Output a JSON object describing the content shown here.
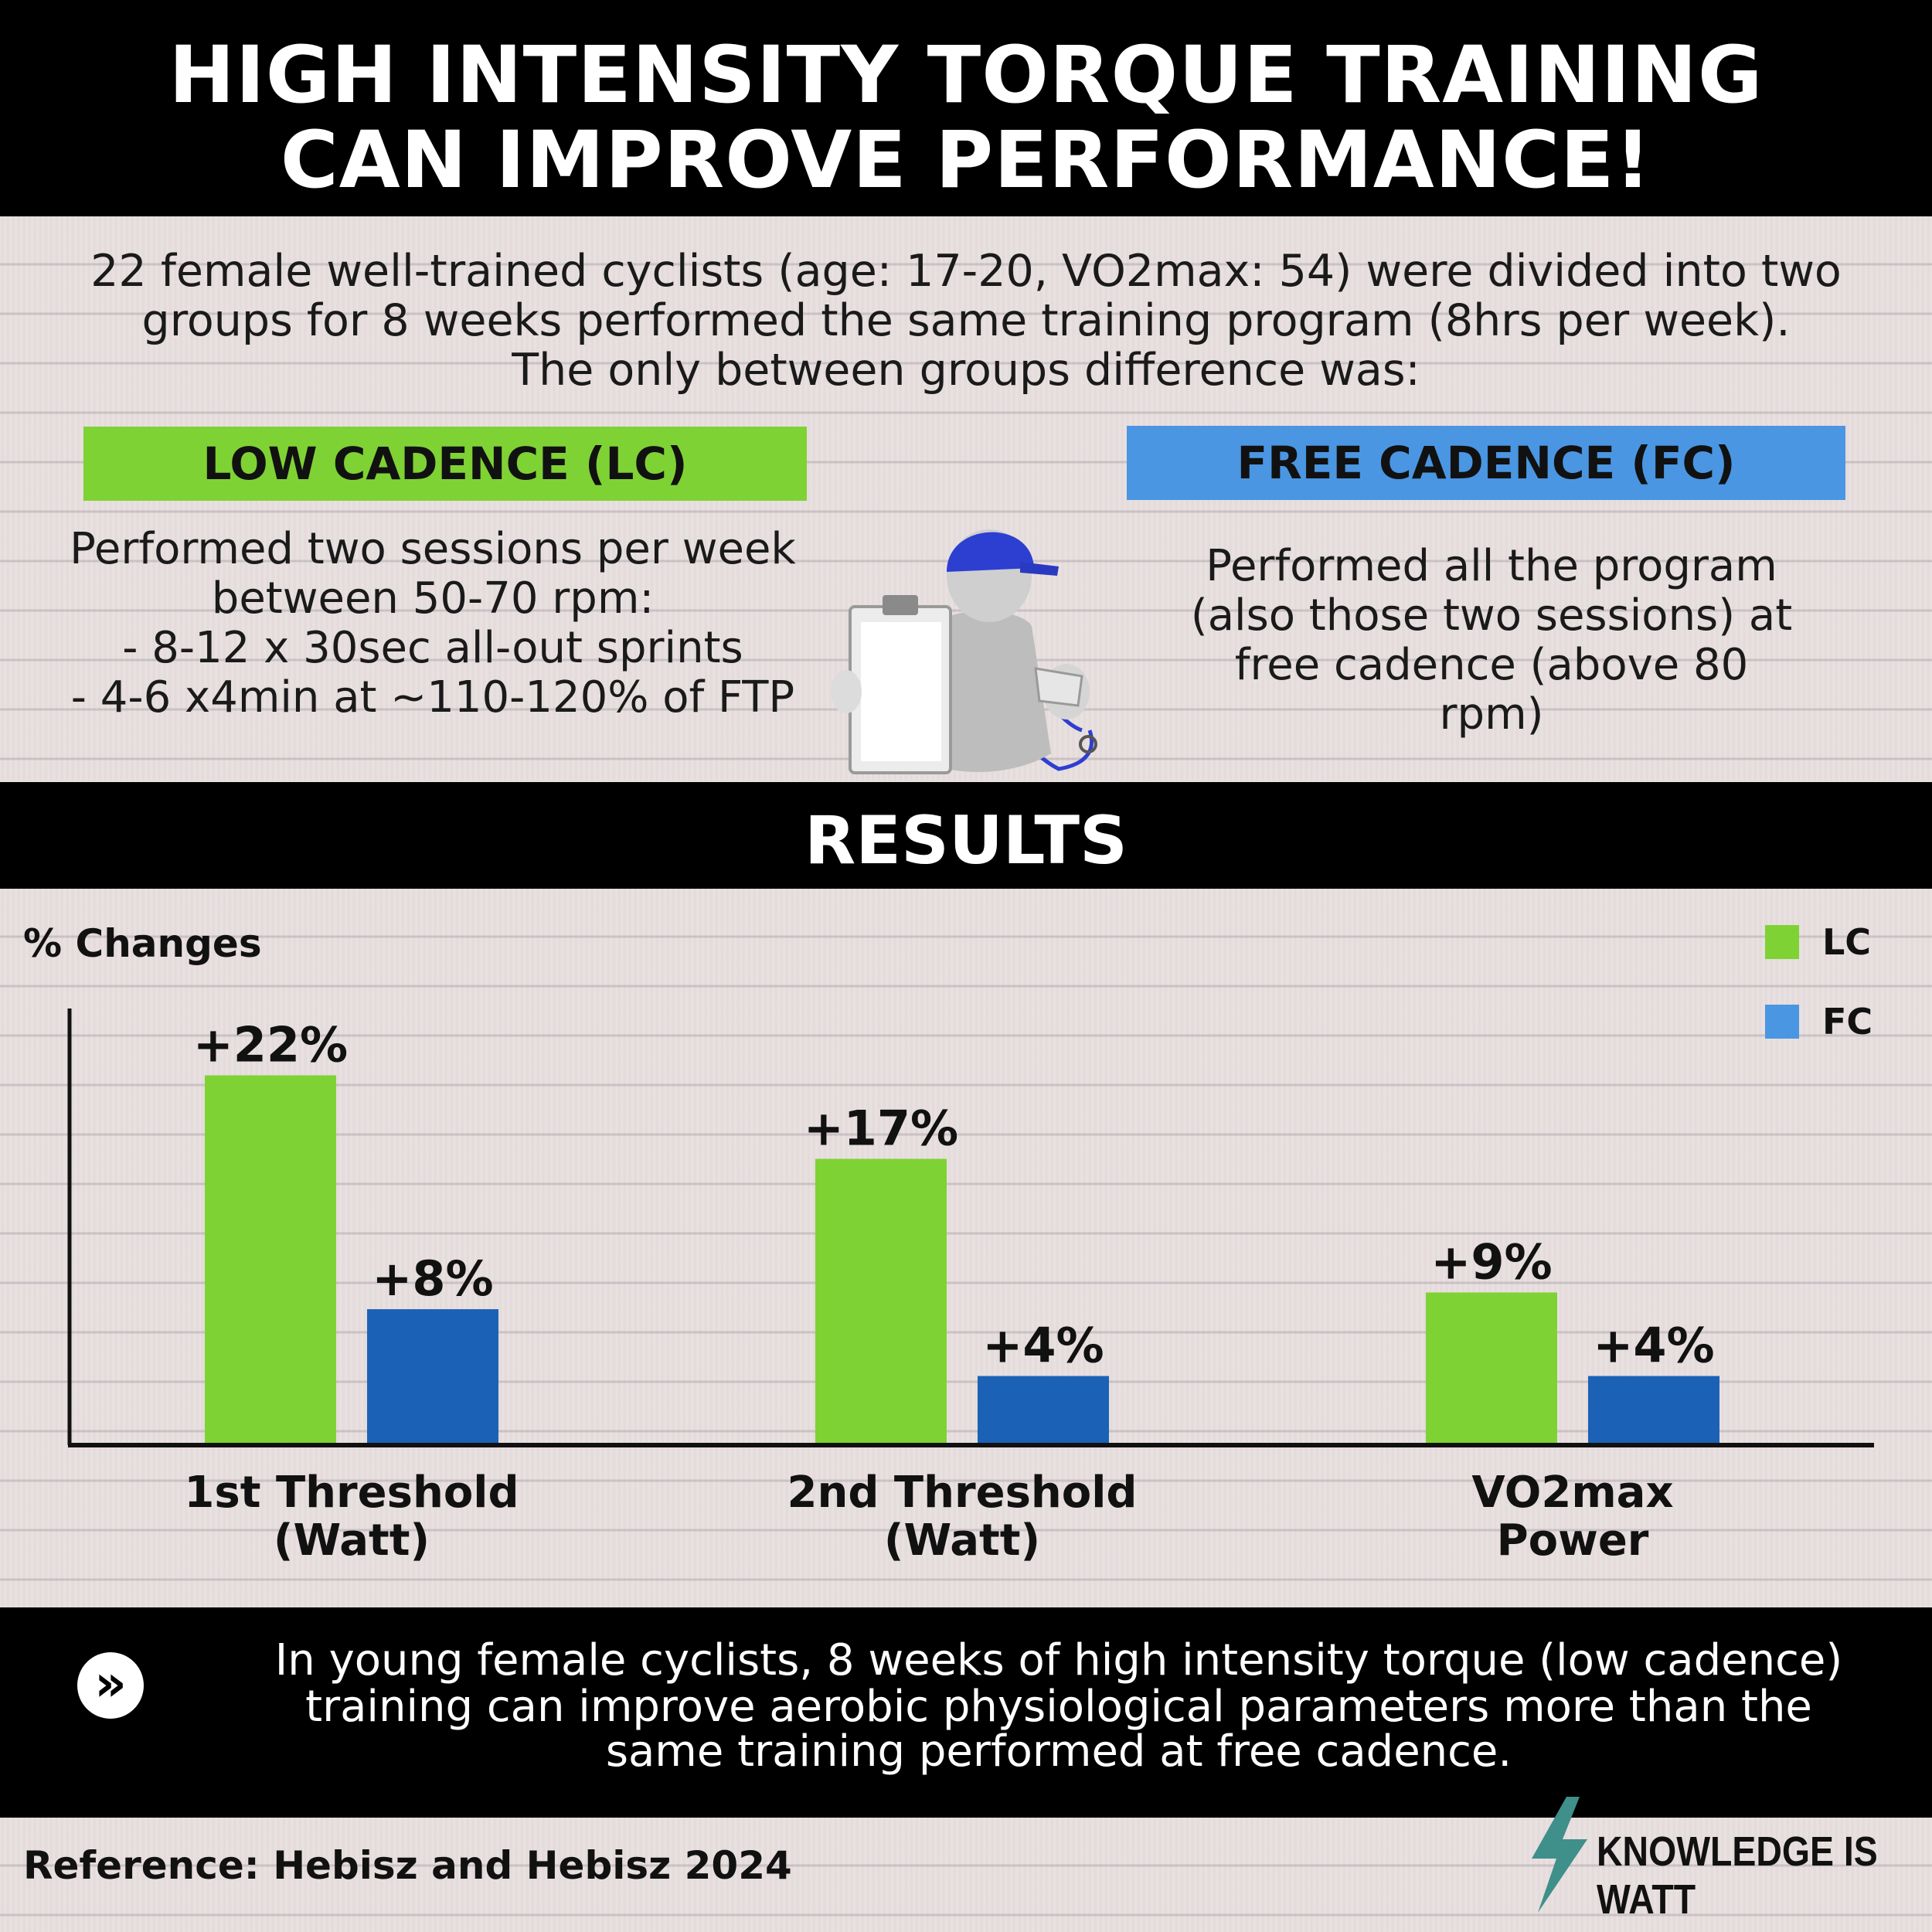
{
  "title": {
    "line1": "HIGH INTENSITY TORQUE TRAINING",
    "line2": "CAN IMPROVE PERFORMANCE!"
  },
  "intro": {
    "line1": "22 female well-trained cyclists (age: 17-20, VO2max: 54) were divided into two",
    "line2": "groups for 8 weeks performed the same training program (8hrs per week).",
    "line3": "The only between groups difference was:"
  },
  "groups": {
    "lc": {
      "label": "LOW CADENCE (LC)",
      "color": "#7fd233",
      "desc": [
        "Performed two sessions per week",
        "between 50-70 rpm:",
        "- 8-12 x 30sec all-out sprints",
        "- 4-6 x4min at ~110-120% of FTP"
      ]
    },
    "fc": {
      "label": "FREE CADENCE (FC)",
      "color": "#4a96e2",
      "desc": [
        "Performed all the program",
        "(also those two sessions) at",
        "free cadence (above 80",
        "rpm)"
      ]
    }
  },
  "results_title": "RESULTS",
  "chart_data": {
    "type": "bar",
    "ylabel": "% Changes",
    "categories": [
      [
        "1st Threshold",
        "(Watt)"
      ],
      [
        "2nd Threshold",
        "(Watt)"
      ],
      [
        "VO2max",
        "Power"
      ]
    ],
    "series": [
      {
        "name": "LC",
        "values": [
          22,
          17,
          9
        ],
        "labels": [
          "+22%",
          "+17%",
          "+9%"
        ],
        "color": "#7fd233"
      },
      {
        "name": "FC",
        "values": [
          8,
          4,
          4
        ],
        "labels": [
          "+8%",
          "+4%",
          "+4%"
        ],
        "color": "#1b62b7"
      }
    ],
    "legend_colors": {
      "LC": "#7fd233",
      "FC": "#4a96e2"
    },
    "ylim": [
      0,
      26
    ],
    "legend": "top-right",
    "grid": false
  },
  "conclusion": {
    "line1": "In young female cyclists, 8 weeks of high intensity torque (low cadence)",
    "line2": "training can improve aerobic physiological parameters more than the",
    "line3": "same training performed at free cadence.",
    "icon": "double-chevron-right-icon"
  },
  "footer": {
    "reference": "Reference: Hebisz and Hebisz 2024",
    "brand": "KNOWLEDGE IS WATT",
    "brand_icon": "lightning-bolt-icon"
  }
}
